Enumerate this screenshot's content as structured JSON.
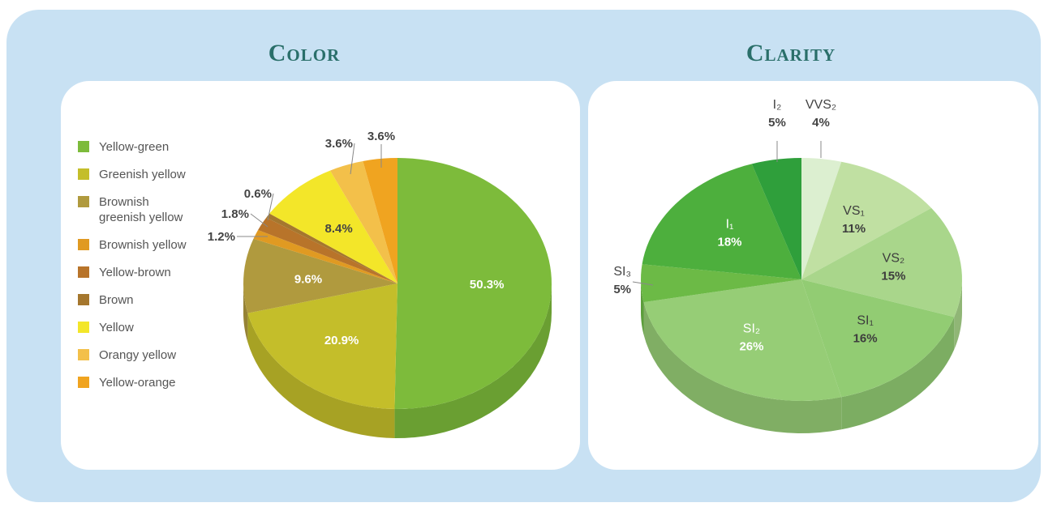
{
  "chart_data": [
    {
      "type": "pie",
      "title": "Color",
      "categories": [
        "Yellow-green",
        "Greenish yellow",
        "Brownish greenish yellow",
        "Brownish yellow",
        "Yellow-brown",
        "Brown",
        "Yellow",
        "Orangy yellow",
        "Yellow-orange"
      ],
      "values": [
        50.3,
        20.9,
        9.6,
        1.2,
        1.8,
        0.6,
        8.4,
        3.6,
        3.6
      ],
      "value_labels": [
        "50.3%",
        "20.9%",
        "9.6%",
        "1.2%",
        "1.8%",
        "0.6%",
        "8.4%",
        "3.6%",
        "3.6%"
      ],
      "colors": [
        "#7dbb3b",
        "#c4be2a",
        "#b09a3e",
        "#e09a22",
        "#b8742a",
        "#a5772e",
        "#f3e629",
        "#f3c04a",
        "#f0a420"
      ],
      "legend": true
    },
    {
      "type": "pie",
      "title": "Clarity",
      "categories": [
        "VVS₂",
        "VS₁",
        "VS₂",
        "SI₁",
        "SI₂",
        "SI₃",
        "I₁",
        "I₂"
      ],
      "values": [
        4,
        11,
        15,
        16,
        26,
        5,
        18,
        5
      ],
      "value_labels": [
        "4%",
        "11%",
        "15%",
        "16%",
        "26%",
        "5%",
        "18%",
        "5%"
      ],
      "colors": [
        "#dcefd0",
        "#c0e0a2",
        "#a9d68b",
        "#92cc73",
        "#96cd76",
        "#6cba46",
        "#4daf3d",
        "#2f9f3b"
      ],
      "legend": false
    }
  ]
}
